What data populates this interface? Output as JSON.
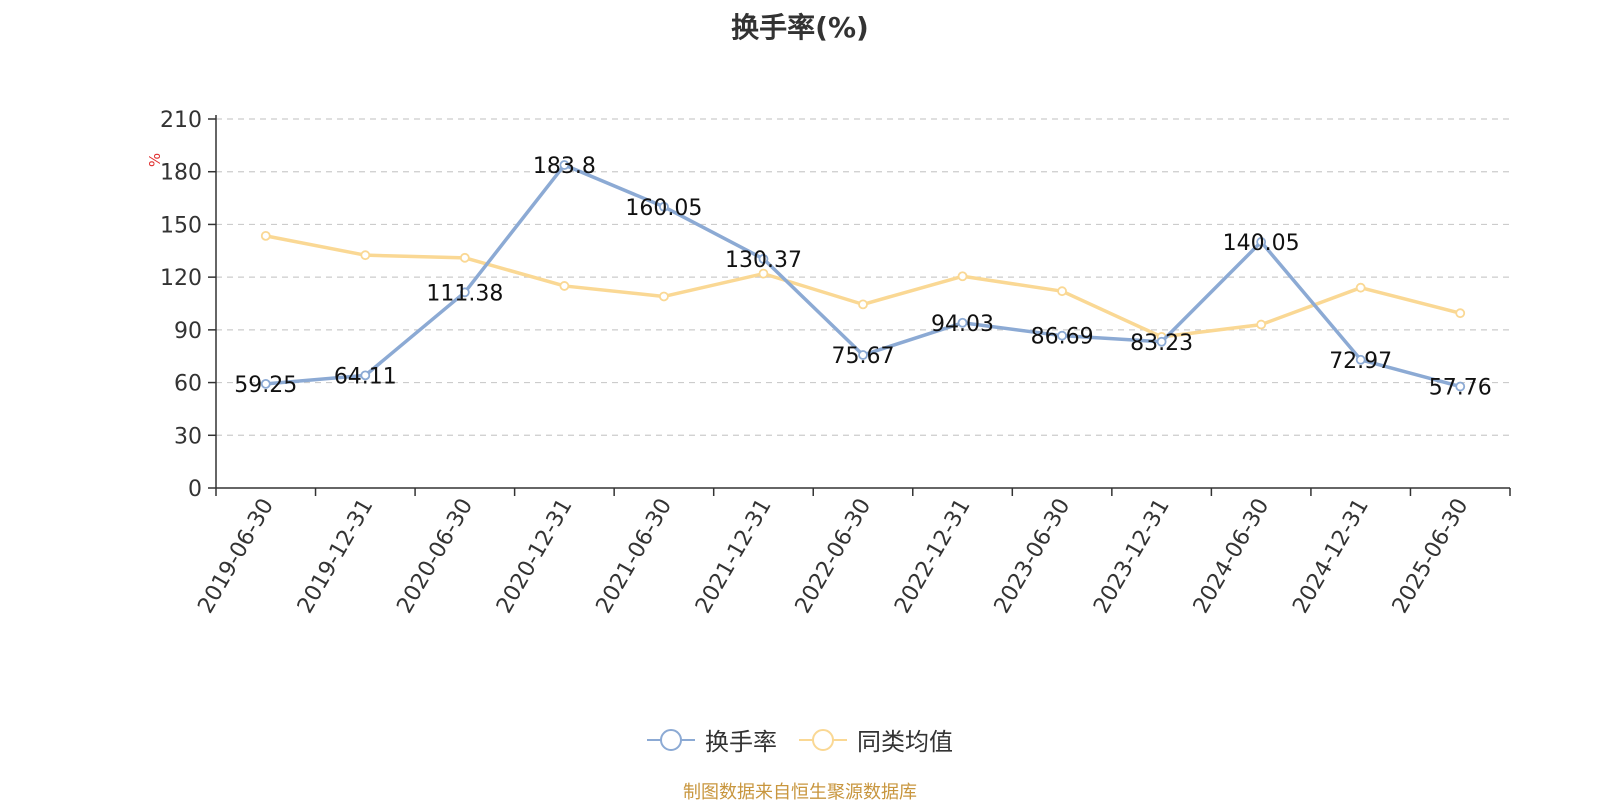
{
  "chart_data": {
    "type": "line",
    "title": "换手率(%)",
    "ylabel": "%",
    "ylim": [
      0,
      210
    ],
    "yticks": [
      0,
      30,
      60,
      90,
      120,
      150,
      180,
      210
    ],
    "grid": true,
    "legend_position": "bottom",
    "categories": [
      "2019-06-30",
      "2019-12-31",
      "2020-06-30",
      "2020-12-31",
      "2021-06-30",
      "2021-12-31",
      "2022-06-30",
      "2022-12-31",
      "2023-06-30",
      "2023-12-31",
      "2024-06-30",
      "2024-12-31",
      "2025-06-30"
    ],
    "series": [
      {
        "name": "换手率",
        "color": "#8caad4",
        "values": [
          59.25,
          64.11,
          111.38,
          183.8,
          160.05,
          130.37,
          75.67,
          94.03,
          86.69,
          83.23,
          140.05,
          72.97,
          57.76
        ],
        "labels": [
          "59.25",
          "64.11",
          "111.38",
          "183.8",
          "160.05",
          "130.37",
          "75.67",
          "94.03",
          "86.69",
          "83.23",
          "140.05",
          "72.97",
          "57.76"
        ]
      },
      {
        "name": "同类均值",
        "color": "#fad894",
        "values": [
          143.5,
          132.5,
          131,
          115,
          109,
          122,
          104.5,
          120.5,
          112,
          86,
          93,
          114,
          99.5
        ]
      }
    ]
  },
  "footer": "制图数据来自恒生聚源数据库"
}
